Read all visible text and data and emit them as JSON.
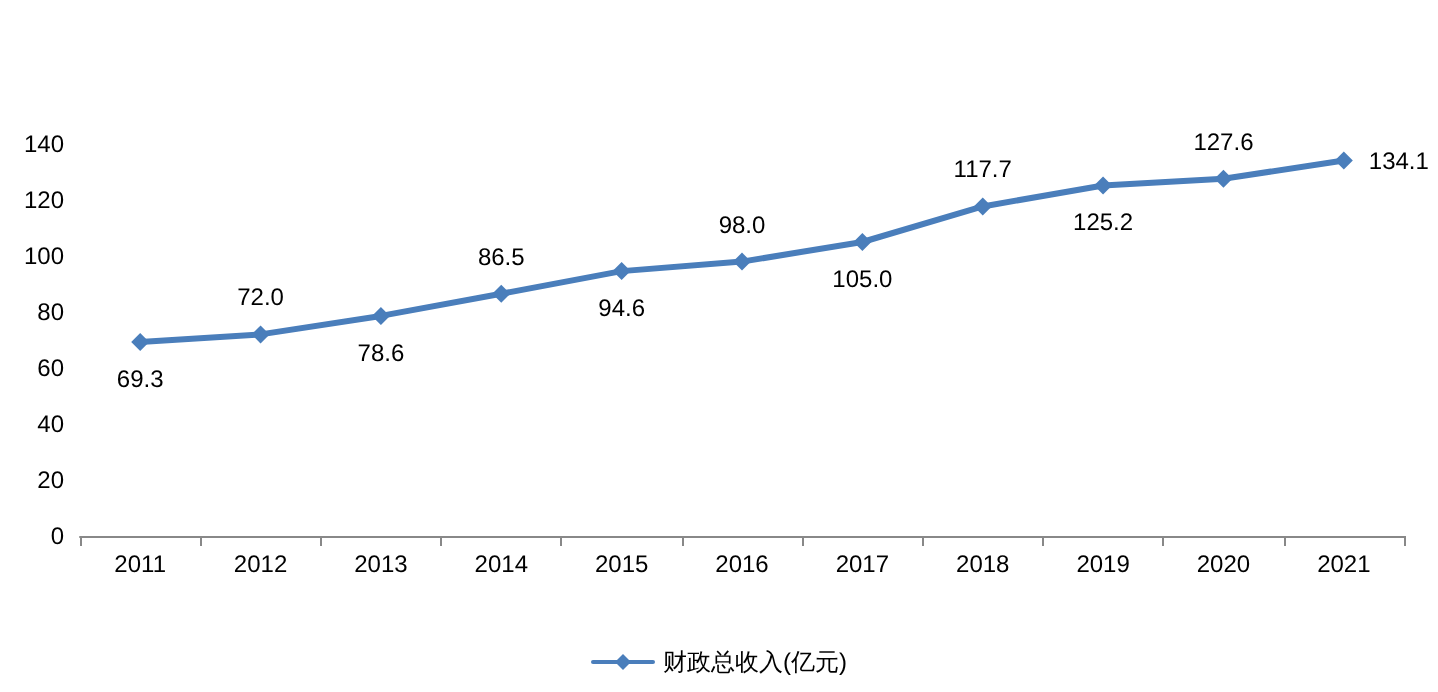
{
  "chart_data": {
    "type": "line",
    "categories": [
      "2011",
      "2012",
      "2013",
      "2014",
      "2015",
      "2016",
      "2017",
      "2018",
      "2019",
      "2020",
      "2021"
    ],
    "series": [
      {
        "name": "财政总收入(亿元)",
        "color": "#4a7ebb",
        "values": [
          69.3,
          72.0,
          78.6,
          86.5,
          94.6,
          98.0,
          105.0,
          117.7,
          125.2,
          127.6,
          134.1
        ],
        "value_labels": [
          "69.3",
          "72.0",
          "78.6",
          "86.5",
          "94.6",
          "98.0",
          "105.0",
          "117.7",
          "125.2",
          "127.6",
          "134.1"
        ]
      }
    ],
    "ylim": [
      0,
      140
    ],
    "yticks": [
      0,
      20,
      40,
      60,
      80,
      100,
      120,
      140
    ],
    "grid": false,
    "legend": "bottom",
    "marker": "diamond",
    "line_style": "solid"
  }
}
